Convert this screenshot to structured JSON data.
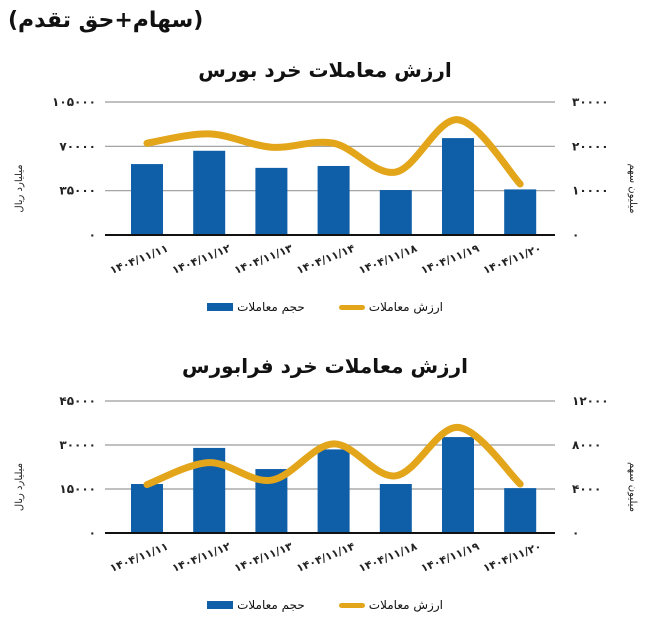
{
  "page_tag": "(سهام+حق تقدم)",
  "colors": {
    "bar": "#0f5ea8",
    "line": "#e3a51a",
    "grid": "#9a9a9a",
    "axis": "#111111"
  },
  "legend": {
    "line_label": "ارزش معاملات",
    "bar_label": "حجم معاملات"
  },
  "charts": [
    {
      "title": "ارزش معاملات خرد بورس",
      "left_axis_title": "میلیارد ریال",
      "right_axis_title": "میلیون سهم",
      "left_ticks": [
        "۰",
        "۳۵۰۰۰",
        "۷۰۰۰۰",
        "۱۰۵۰۰۰"
      ],
      "right_ticks": [
        "۰",
        "۱۰۰۰۰",
        "۲۰۰۰۰",
        "۳۰۰۰۰"
      ],
      "categories": [
        "۱۴۰۴/۱۱/۱۱",
        "۱۴۰۴/۱۱/۱۲",
        "۱۴۰۴/۱۱/۱۳",
        "۱۴۰۴/۱۱/۱۴",
        "۱۴۰۴/۱۱/۱۸",
        "۱۴۰۴/۱۱/۱۹",
        "۱۴۰۴/۱۱/۲۰"
      ]
    },
    {
      "title": "ارزش معاملات خرد فرابورس",
      "left_axis_title": "میلیارد ریال",
      "right_axis_title": "میلیون سهم",
      "left_ticks": [
        "۰",
        "۱۵۰۰۰",
        "۳۰۰۰۰",
        "۴۵۰۰۰"
      ],
      "right_ticks": [
        "۰",
        "۴۰۰۰",
        "۸۰۰۰",
        "۱۲۰۰۰"
      ],
      "categories": [
        "۱۴۰۴/۱۱/۱۱",
        "۱۴۰۴/۱۱/۱۲",
        "۱۴۰۴/۱۱/۱۳",
        "۱۴۰۴/۱۱/۱۴",
        "۱۴۰۴/۱۱/۱۸",
        "۱۴۰۴/۱۱/۱۹",
        "۱۴۰۴/۱۱/۲۰"
      ]
    }
  ],
  "chart_data": [
    {
      "type": "bar",
      "title": "ارزش معاملات خرد بورس",
      "categories": [
        "1404/11/11",
        "1404/11/12",
        "1404/11/13",
        "1404/11/14",
        "1404/11/18",
        "1404/11/19",
        "1404/11/20"
      ],
      "series": [
        {
          "name": "حجم معاملات",
          "type": "bar",
          "axis": "left",
          "values": [
            56000,
            66500,
            53000,
            54500,
            35500,
            76500,
            36000
          ]
        },
        {
          "name": "ارزش معاملات",
          "type": "line",
          "axis": "right",
          "values": [
            20700,
            22800,
            19800,
            20700,
            14200,
            26000,
            11500
          ]
        }
      ],
      "xlabel": "",
      "ylabel": "میلیارد ریال",
      "y2label": "میلیون سهم",
      "ylim": [
        0,
        105000
      ],
      "y2lim": [
        0,
        30000
      ],
      "grid": true,
      "legend_position": "bottom"
    },
    {
      "type": "bar",
      "title": "ارزش معاملات خرد فرابورس",
      "categories": [
        "1404/11/11",
        "1404/11/12",
        "1404/11/13",
        "1404/11/14",
        "1404/11/18",
        "1404/11/19",
        "1404/11/20"
      ],
      "series": [
        {
          "name": "حجم معاملات",
          "type": "bar",
          "axis": "left",
          "values": [
            16700,
            29000,
            21800,
            28500,
            16700,
            32700,
            15300
          ]
        },
        {
          "name": "ارزش معاملات",
          "type": "line",
          "axis": "right",
          "values": [
            4400,
            6400,
            4800,
            8100,
            5200,
            9600,
            4450
          ]
        }
      ],
      "xlabel": "",
      "ylabel": "میلیارد ریال",
      "y2label": "میلیون سهم",
      "ylim": [
        0,
        45000
      ],
      "y2lim": [
        0,
        12000
      ],
      "grid": true,
      "legend_position": "bottom"
    }
  ]
}
